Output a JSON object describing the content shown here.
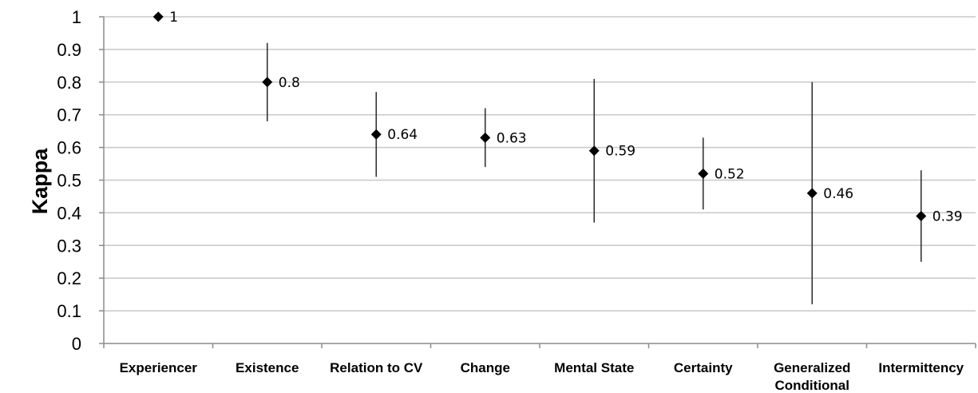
{
  "chart_data": {
    "type": "scatter",
    "ylabel": "Kappa",
    "xlabel": "",
    "ylim": [
      0,
      1
    ],
    "yticks": [
      "0",
      "0.1",
      "0.2",
      "0.3",
      "0.4",
      "0.5",
      "0.6",
      "0.7",
      "0.8",
      "0.9",
      "1"
    ],
    "grid": true,
    "categories": [
      [
        "Experiencer"
      ],
      [
        "Existence"
      ],
      [
        "Relation to CV"
      ],
      [
        "Change"
      ],
      [
        "Mental State"
      ],
      [
        "Certainty"
      ],
      [
        "Generalized",
        "Conditional"
      ],
      [
        "Intermittency"
      ]
    ],
    "series": [
      {
        "values": [
          1,
          0.8,
          0.64,
          0.63,
          0.59,
          0.52,
          0.46,
          0.39
        ],
        "labels": [
          "1",
          "0.8",
          "0.64",
          "0.63",
          "0.59",
          "0.52",
          "0.46",
          "0.39"
        ],
        "error_low": [
          1,
          0.68,
          0.51,
          0.54,
          0.37,
          0.41,
          0.12,
          0.25
        ],
        "error_high": [
          1,
          0.92,
          0.77,
          0.72,
          0.81,
          0.63,
          0.8,
          0.53
        ],
        "marker": "diamond",
        "color": "#000000"
      }
    ]
  }
}
